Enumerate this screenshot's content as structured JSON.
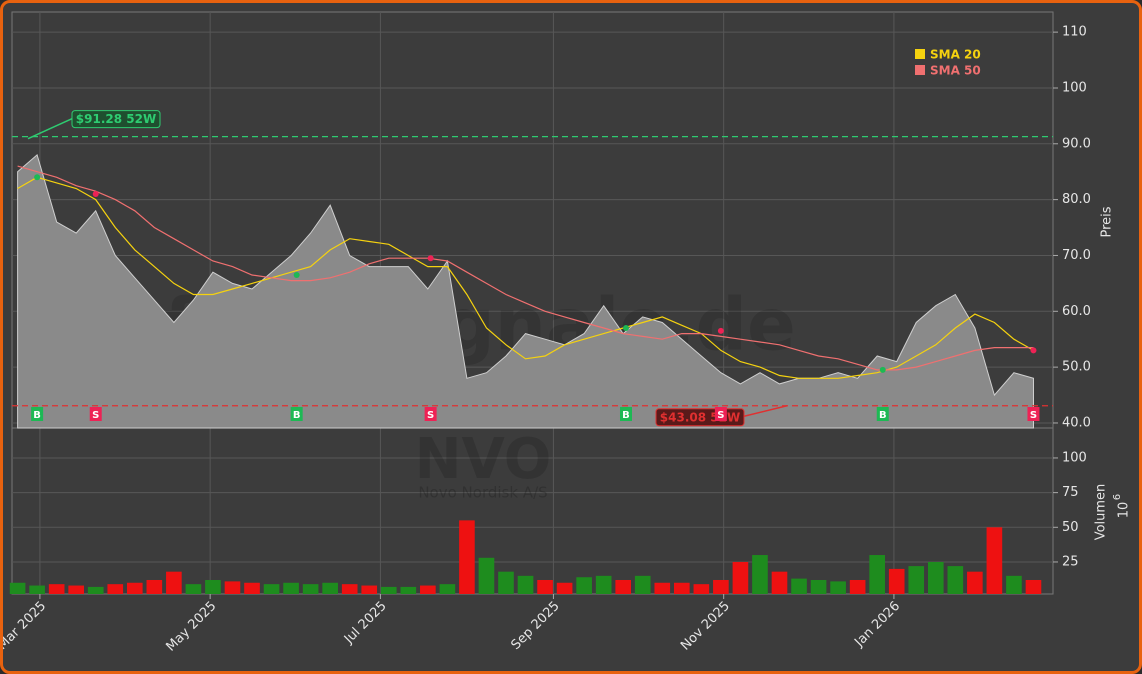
{
  "chart_data": [
    {
      "type": "line",
      "watermark": "forexsignale.de",
      "y_label": "Preis",
      "x": [
        "2025-02-21",
        "2025-02-28",
        "2025-03-07",
        "2025-03-14",
        "2025-03-21",
        "2025-03-28",
        "2025-04-04",
        "2025-04-11",
        "2025-04-18",
        "2025-04-25",
        "2025-05-02",
        "2025-05-09",
        "2025-05-16",
        "2025-05-23",
        "2025-05-30",
        "2025-06-06",
        "2025-06-13",
        "2025-06-20",
        "2025-06-27",
        "2025-07-04",
        "2025-07-11",
        "2025-07-18",
        "2025-07-25",
        "2025-08-01",
        "2025-08-08",
        "2025-08-15",
        "2025-08-22",
        "2025-08-29",
        "2025-09-05",
        "2025-09-12",
        "2025-09-19",
        "2025-09-26",
        "2025-10-03",
        "2025-10-10",
        "2025-10-17",
        "2025-10-24",
        "2025-10-31",
        "2025-11-07",
        "2025-11-14",
        "2025-11-21",
        "2025-11-28",
        "2025-12-05",
        "2025-12-12",
        "2025-12-19",
        "2025-12-26",
        "2026-01-02",
        "2026-01-09",
        "2026-01-16",
        "2026-01-23",
        "2026-01-30",
        "2026-02-06",
        "2026-02-13",
        "2026-02-20"
      ],
      "values": [
        85,
        88,
        76,
        74,
        78,
        70,
        66,
        62,
        58,
        62,
        67,
        65,
        64,
        67,
        70,
        74,
        79,
        70,
        68,
        68,
        68,
        64,
        69,
        48,
        49,
        52,
        56,
        55,
        54,
        56,
        61,
        56,
        59,
        58,
        55,
        52,
        49,
        47,
        49,
        47,
        48,
        48,
        49,
        48,
        52,
        51,
        58,
        61,
        63,
        57,
        45,
        49,
        48
      ],
      "color": "#8a8a8a",
      "series": [
        {
          "name": "SMA 20",
          "color": "#f5d20f",
          "values": [
            82,
            84,
            83,
            82,
            80,
            75,
            71,
            68,
            65,
            63,
            63,
            64,
            65,
            66,
            67,
            68,
            71,
            73,
            72.5,
            72,
            70,
            68,
            68,
            63,
            57,
            54,
            51.5,
            52,
            54,
            55,
            56,
            57,
            58,
            59,
            57.5,
            56,
            53,
            51,
            50,
            48.5,
            48,
            48,
            48,
            48.5,
            49,
            50,
            52,
            54,
            57,
            59.5,
            58,
            55,
            53
          ]
        },
        {
          "name": "SMA 50",
          "color": "#f07070",
          "values": [
            86,
            85,
            84,
            82.5,
            81.5,
            80,
            78,
            75,
            73,
            71,
            69,
            68,
            66.5,
            66,
            65.5,
            65.5,
            66,
            67,
            68.5,
            69.5,
            69.5,
            69.5,
            69,
            67,
            65,
            63,
            61.5,
            60,
            59,
            58,
            57,
            56,
            55.5,
            55,
            56,
            56,
            55.5,
            55,
            54.5,
            54,
            53,
            52,
            51.5,
            50.5,
            49.5,
            49.5,
            50,
            51,
            52,
            53,
            53.5,
            53.5,
            53.5
          ]
        }
      ],
      "signals": [
        {
          "date": "2025-02-28",
          "label": "B",
          "price": 84,
          "color": "#1db954"
        },
        {
          "date": "2025-03-21",
          "label": "S",
          "price": 81,
          "color": "#ee2255"
        },
        {
          "date": "2025-06-01",
          "label": "B",
          "price": 66.5,
          "color": "#1db954"
        },
        {
          "date": "2025-07-19",
          "label": "S",
          "price": 69.5,
          "color": "#ee2255"
        },
        {
          "date": "2025-09-27",
          "label": "B",
          "price": 57,
          "color": "#1db954"
        },
        {
          "date": "2025-10-31",
          "label": "S",
          "price": 56.5,
          "color": "#ee2255"
        },
        {
          "date": "2025-12-28",
          "label": "B",
          "price": 49.5,
          "color": "#1db954"
        },
        {
          "date": "2026-02-20",
          "label": "S",
          "price": 53,
          "color": "#ee2255"
        }
      ],
      "annotations": [
        {
          "text": "$91.28 52W",
          "value": 91.28,
          "color": "#2ecc71"
        },
        {
          "text": "$43.08 52W",
          "value": 43.08,
          "color": "#e03030"
        }
      ],
      "xlim": [
        "2025-02-19",
        "2026-02-27"
      ],
      "xticks": [
        {
          "value": "2025-03-01",
          "label": "Mar 2025"
        },
        {
          "value": "2025-05-01",
          "label": "May 2025"
        },
        {
          "value": "2025-07-01",
          "label": "Jul 2025"
        },
        {
          "value": "2025-09-01",
          "label": "Sep 2025"
        },
        {
          "value": "2025-11-01",
          "label": "Nov 2025"
        },
        {
          "value": "2026-01-01",
          "label": "Jan 2026"
        }
      ],
      "ylim": [
        39.1,
        113.6
      ],
      "yticks": [
        {
          "value": 40,
          "label": "40.0"
        },
        {
          "value": 50,
          "label": "50.0"
        },
        {
          "value": 60,
          "label": "60.0"
        },
        {
          "value": 70,
          "label": "70.0"
        },
        {
          "value": 80,
          "label": "80.0"
        },
        {
          "value": 90,
          "label": "90.0"
        },
        100,
        110
      ],
      "grid": true
    },
    {
      "type": "bar",
      "title": "NVO",
      "subtitle": "Novo Nordisk A/S",
      "y_label": "Volumen",
      "y_unit_base": "10",
      "y_unit_exponent": "6",
      "values": [
        10,
        8,
        9,
        8,
        7,
        9,
        10,
        12,
        18,
        9,
        12,
        11,
        10,
        9,
        10,
        9,
        10,
        9,
        8,
        7,
        7,
        8,
        9,
        55,
        28,
        18,
        15,
        12,
        10,
        14,
        15,
        12,
        15,
        10,
        10,
        9,
        12,
        25,
        30,
        18,
        13,
        12,
        11,
        12,
        30,
        20,
        22,
        25,
        22,
        18,
        50,
        15,
        12
      ],
      "up_color": "#1e8c1e",
      "down_color": "#ee1111",
      "ylim": [
        1.9,
        121.6
      ],
      "yticks": [
        25,
        50,
        75,
        100
      ],
      "grid": true
    }
  ]
}
